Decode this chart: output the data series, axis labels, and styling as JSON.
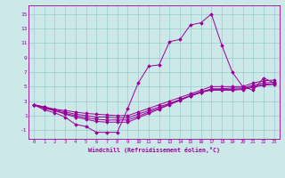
{
  "background_color": "#cce8e8",
  "grid_color": "#99cccc",
  "line_color": "#990099",
  "xlabel": "Windchill (Refroidissement éolien,°C)",
  "xlim": [
    -0.5,
    23.5
  ],
  "ylim": [
    -2.2,
    16.2
  ],
  "xticks": [
    0,
    1,
    2,
    3,
    4,
    5,
    6,
    7,
    8,
    9,
    10,
    11,
    12,
    13,
    14,
    15,
    16,
    17,
    18,
    19,
    20,
    21,
    22,
    23
  ],
  "yticks": [
    -1,
    1,
    3,
    5,
    7,
    9,
    11,
    13,
    15
  ],
  "series": [
    [
      2.5,
      2.2,
      1.9,
      1.7,
      1.5,
      1.3,
      1.2,
      1.1,
      1.0,
      1.0,
      1.5,
      2.0,
      2.5,
      3.0,
      3.5,
      4.0,
      4.5,
      5.0,
      5.0,
      5.0,
      5.0,
      5.5,
      5.8,
      5.9
    ],
    [
      2.5,
      2.2,
      1.8,
      1.5,
      1.2,
      1.0,
      0.8,
      0.8,
      0.7,
      0.7,
      1.2,
      1.7,
      2.2,
      2.7,
      3.2,
      3.7,
      4.2,
      4.7,
      4.7,
      4.8,
      4.8,
      5.2,
      5.5,
      5.6
    ],
    [
      2.5,
      2.1,
      1.7,
      1.3,
      1.0,
      0.7,
      0.5,
      0.4,
      0.4,
      0.4,
      0.9,
      1.5,
      2.0,
      2.6,
      3.2,
      3.8,
      4.3,
      4.6,
      4.6,
      4.6,
      4.7,
      5.0,
      5.3,
      5.4
    ],
    [
      2.5,
      2.0,
      1.7,
      1.2,
      0.8,
      0.5,
      0.2,
      0.1,
      0.1,
      0.1,
      0.7,
      1.3,
      1.9,
      2.5,
      3.1,
      3.7,
      4.2,
      4.5,
      4.5,
      4.5,
      4.6,
      4.9,
      5.2,
      5.3
    ],
    [
      2.5,
      1.8,
      1.4,
      0.8,
      -0.2,
      -0.5,
      -1.3,
      -1.3,
      -1.3,
      2.0,
      5.5,
      7.8,
      8.0,
      11.2,
      11.5,
      13.5,
      13.8,
      15.0,
      10.7,
      7.0,
      5.0,
      4.5,
      6.2,
      5.5
    ]
  ]
}
